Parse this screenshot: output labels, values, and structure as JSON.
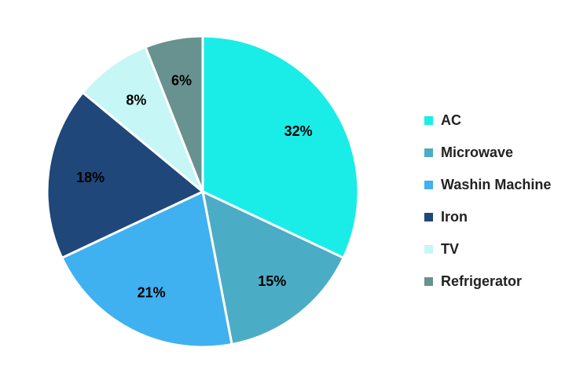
{
  "chart_data": {
    "type": "pie",
    "title": "",
    "categories": [
      "AC",
      "Microwave",
      "Washin Machine",
      "Iron",
      "TV",
      "Refrigerator"
    ],
    "values": [
      32,
      15,
      21,
      18,
      8,
      6
    ],
    "value_labels": [
      "32%",
      "15%",
      "21%",
      "18%",
      "8%",
      "6%"
    ],
    "colors": [
      "#1AEDE8",
      "#4BACC6",
      "#3FB1F0",
      "#1F477A",
      "#C6F6F6",
      "#67928F"
    ],
    "start_angle": "top, clockwise",
    "legend": {
      "position": "right",
      "items": [
        "AC",
        "Microwave",
        "Washin Machine",
        "Iron",
        "TV",
        "Refrigerator"
      ]
    }
  }
}
